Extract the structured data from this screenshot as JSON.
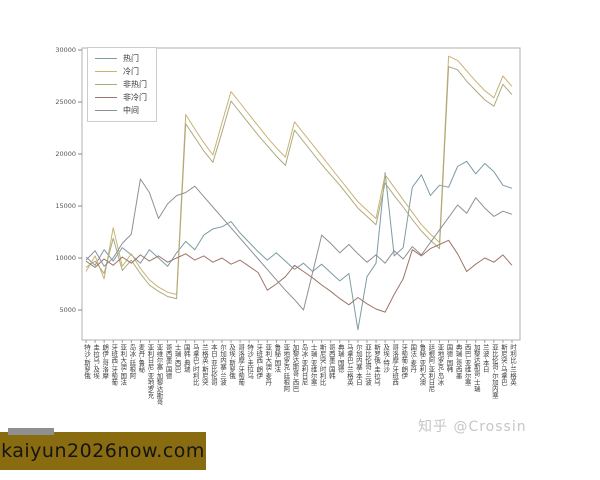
{
  "watermark": {
    "text": "知乎 @Crossin",
    "color": "#c6c6c6"
  },
  "badge": {
    "text": "kaiyun2026now.com",
    "background": "#8a6c10"
  },
  "chart_data": {
    "type": "line",
    "title": "",
    "xlabel": "",
    "ylabel": "",
    "grid": false,
    "legend_position": "upper-left",
    "ylim": [
      2000,
      30500
    ],
    "yticks": [
      5000,
      10000,
      15000,
      20000,
      25000,
      30000
    ],
    "categories": [
      "俄罗斯 - 沙特",
      "埃及 - 乌拉圭",
      "摩洛哥 - 伊朗",
      "葡萄牙 - 西班牙",
      "法国 - 澳大利亚",
      "阿根廷 - 冰岛",
      "秘鲁 - 丹麦",
      "克罗地亚 - 尼日利亚",
      "哥斯达黎加 - 塞尔维亚",
      "德国 - 墨西哥",
      "巴西 - 瑞士",
      "瑞典 - 韩国",
      "比利时 - 巴拿马",
      "突尼斯 - 英格兰",
      "哥伦比亚 - 日本",
      "波兰 - 塞内加尔",
      "俄罗斯 - 埃及",
      "葡萄牙 - 摩洛哥",
      "乌拉圭 - 沙特",
      "伊朗 - 西班牙",
      "丹麦 - 澳大利亚",
      "法国 - 秘鲁",
      "阿根廷 - 克罗地亚",
      "巴西 - 哥斯达黎加",
      "尼日利亚 - 冰岛",
      "塞尔维亚 - 瑞士",
      "比利时 - 突尼斯",
      "韩国 - 墨西哥",
      "德国 - 瑞典",
      "英格兰 - 巴拿马",
      "日本 - 塞内加尔",
      "波兰 - 哥伦比亚",
      "乌拉圭 - 俄罗斯",
      "沙特 - 埃及",
      "西班牙 - 摩洛哥",
      "伊朗 - 葡萄牙",
      "丹麦 - 法国",
      "澳大利亚 - 秘鲁",
      "尼日利亚 - 阿根廷",
      "冰岛 - 克罗地亚",
      "韩国 - 德国",
      "墨西哥 - 瑞典",
      "塞尔维亚 - 巴西",
      "瑞士 - 哥斯达黎加",
      "日本 - 波兰",
      "塞内加尔 - 哥伦比亚",
      "巴拿马 - 突尼斯",
      "英格兰 - 比利时"
    ],
    "series": [
      {
        "name": "热门",
        "color": "#7d9ba4",
        "values": [
          10100,
          9300,
          10800,
          9700,
          11000,
          10300,
          9500,
          10800,
          10000,
          9200,
          10500,
          11600,
          10800,
          12200,
          12800,
          13000,
          13500,
          12400,
          11500,
          10600,
          9800,
          10500,
          9700,
          8900,
          9500,
          8700,
          9400,
          8600,
          7800,
          8500,
          3100,
          8200,
          9500,
          18200,
          10200,
          11000,
          16800,
          18000,
          16000,
          17000,
          16800,
          18800,
          19300,
          18100,
          19100,
          18300,
          17000,
          16700
        ]
      },
      {
        "name": "冷门",
        "color": "#c8b274",
        "values": [
          8700,
          10200,
          8000,
          12900,
          9200,
          10400,
          9000,
          7900,
          7200,
          6700,
          6500,
          23800,
          22400,
          21100,
          19900,
          23000,
          26000,
          24900,
          23800,
          22700,
          21600,
          20600,
          19700,
          23100,
          22000,
          20900,
          19800,
          18700,
          17600,
          16500,
          15400,
          14600,
          13800,
          18000,
          16800,
          15600,
          14400,
          13200,
          12300,
          11500,
          29400,
          29000,
          28000,
          27000,
          26100,
          25400,
          27500,
          26500
        ]
      },
      {
        "name": "非热门",
        "color": "#acaa7c",
        "values": [
          9100,
          9700,
          8500,
          11900,
          8800,
          9800,
          8500,
          7400,
          6800,
          6300,
          6100,
          22900,
          21600,
          20300,
          19200,
          22100,
          25100,
          24000,
          22900,
          21800,
          20800,
          19800,
          18900,
          22300,
          21200,
          20100,
          19000,
          18000,
          17000,
          15900,
          14800,
          14000,
          13200,
          17200,
          16000,
          14900,
          13700,
          12600,
          11700,
          10900,
          28400,
          28100,
          27000,
          26100,
          25200,
          24600,
          26700,
          25700
        ]
      },
      {
        "name": "非冷门",
        "color": "#9f746b",
        "values": [
          9700,
          9100,
          9900,
          9300,
          10100,
          9500,
          10300,
          9700,
          10200,
          9600,
          10000,
          10400,
          9800,
          10200,
          9600,
          10000,
          9400,
          9800,
          9200,
          8600,
          6900,
          7500,
          8200,
          9300,
          8700,
          8100,
          7400,
          6800,
          6100,
          5500,
          6200,
          5600,
          5100,
          4800,
          6500,
          8000,
          10800,
          10200,
          10900,
          11300,
          11700,
          10400,
          8700,
          9400,
          10000,
          9600,
          10300,
          9300
        ]
      },
      {
        "name": "中间",
        "color": "#8f8f98",
        "values": [
          9800,
          10700,
          9200,
          10000,
          11400,
          12300,
          17600,
          16300,
          13800,
          15200,
          16000,
          16300,
          16900,
          15900,
          14900,
          13900,
          12900,
          11900,
          10900,
          9900,
          8900,
          7900,
          6900,
          6000,
          5000,
          8600,
          12200,
          11400,
          10500,
          11300,
          10400,
          9600,
          10300,
          9500,
          10700,
          9900,
          11100,
          10300,
          11500,
          12700,
          13900,
          15100,
          14300,
          15800,
          14800,
          14000,
          14500,
          14200
        ]
      }
    ]
  }
}
